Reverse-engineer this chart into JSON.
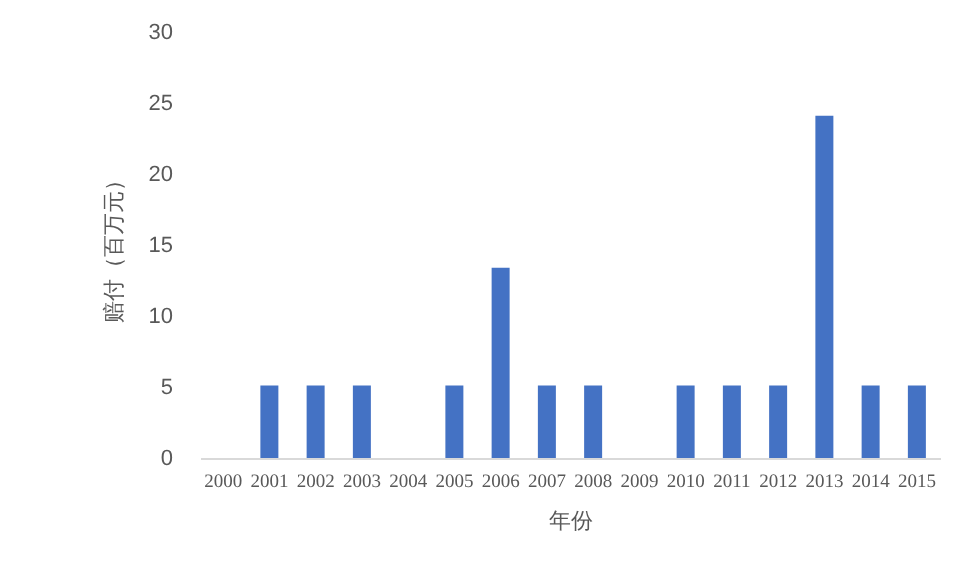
{
  "chart_data": {
    "type": "bar",
    "xlabel": "年份",
    "ylabel": "赔付（百万元）",
    "categories": [
      "2000",
      "2001",
      "2002",
      "2003",
      "2004",
      "2005",
      "2006",
      "2007",
      "2008",
      "2009",
      "2010",
      "2011",
      "2012",
      "2013",
      "2014",
      "2015"
    ],
    "values": [
      0,
      5.1,
      5.1,
      5.1,
      0,
      5.1,
      13.4,
      5.1,
      5.1,
      0,
      5.1,
      5.1,
      5.1,
      24.1,
      5.1,
      5.1
    ],
    "color": "#4472c4",
    "ylim": [
      0,
      30
    ],
    "yticks": [
      0,
      5,
      10,
      15,
      20,
      25,
      30
    ],
    "grid": false
  }
}
